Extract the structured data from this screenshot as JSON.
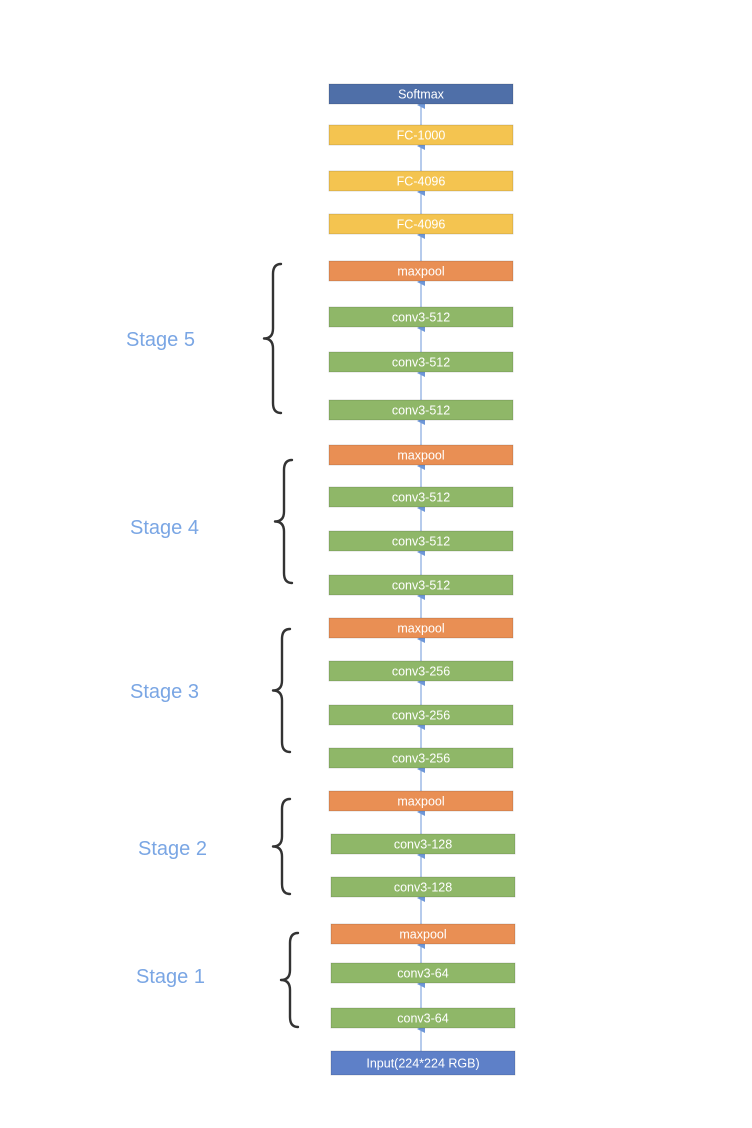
{
  "colors": {
    "softmax": "#4f6fa8",
    "fc": "#f4c450",
    "maxpool": "#e98f54",
    "conv": "#8fb768",
    "input": "#5e80c8",
    "arrow": "#6e97d8",
    "brace": "#333333",
    "stage_text": "#7aa6e4"
  },
  "layers": [
    {
      "id": "softmax",
      "label": "Softmax",
      "kind": "softmax"
    },
    {
      "id": "fc-1000",
      "label": "FC-1000",
      "kind": "fc"
    },
    {
      "id": "fc-4096-b",
      "label": "FC-4096",
      "kind": "fc"
    },
    {
      "id": "fc-4096-a",
      "label": "FC-4096",
      "kind": "fc"
    },
    {
      "id": "s5-maxpool",
      "label": "maxpool",
      "kind": "maxpool"
    },
    {
      "id": "s5-conv3",
      "label": "conv3-512",
      "kind": "conv"
    },
    {
      "id": "s5-conv2",
      "label": "conv3-512",
      "kind": "conv"
    },
    {
      "id": "s5-conv1",
      "label": "conv3-512",
      "kind": "conv"
    },
    {
      "id": "s4-maxpool",
      "label": "maxpool",
      "kind": "maxpool"
    },
    {
      "id": "s4-conv3",
      "label": "conv3-512",
      "kind": "conv"
    },
    {
      "id": "s4-conv2",
      "label": "conv3-512",
      "kind": "conv"
    },
    {
      "id": "s4-conv1",
      "label": "conv3-512",
      "kind": "conv"
    },
    {
      "id": "s3-maxpool",
      "label": "maxpool",
      "kind": "maxpool"
    },
    {
      "id": "s3-conv3",
      "label": "conv3-256",
      "kind": "conv"
    },
    {
      "id": "s3-conv2",
      "label": "conv3-256",
      "kind": "conv"
    },
    {
      "id": "s3-conv1",
      "label": "conv3-256",
      "kind": "conv"
    },
    {
      "id": "s2-maxpool",
      "label": "maxpool",
      "kind": "maxpool"
    },
    {
      "id": "s2-conv2",
      "label": "conv3-128",
      "kind": "conv"
    },
    {
      "id": "s2-conv1",
      "label": "conv3-128",
      "kind": "conv"
    },
    {
      "id": "s1-maxpool",
      "label": "maxpool",
      "kind": "maxpool"
    },
    {
      "id": "s1-conv2",
      "label": "conv3-64",
      "kind": "conv"
    },
    {
      "id": "s1-conv1",
      "label": "conv3-64",
      "kind": "conv"
    },
    {
      "id": "input",
      "label": "Input(224*224 RGB)",
      "kind": "input"
    }
  ],
  "stages": [
    {
      "id": "stage-5",
      "label": "Stage 5"
    },
    {
      "id": "stage-4",
      "label": "Stage 4"
    },
    {
      "id": "stage-3",
      "label": "Stage 3"
    },
    {
      "id": "stage-2",
      "label": "Stage 2"
    },
    {
      "id": "stage-1",
      "label": "Stage 1"
    }
  ]
}
